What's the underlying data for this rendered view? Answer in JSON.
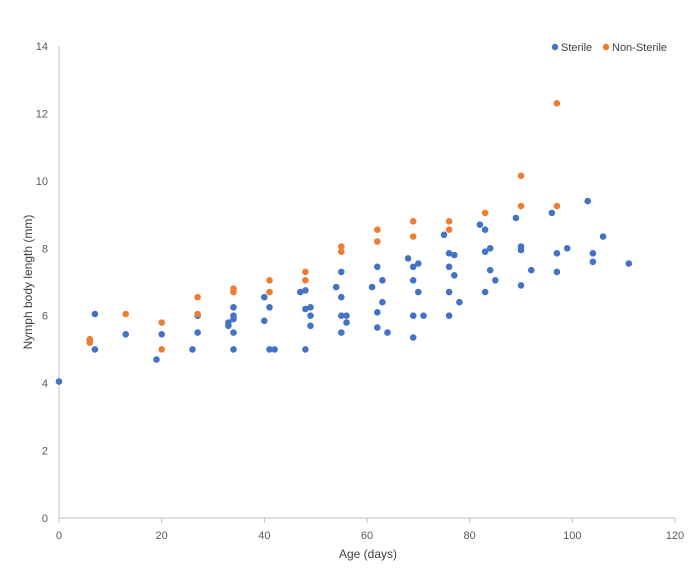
{
  "colors": {
    "sterile": "#4472C4",
    "non_sterile": "#ED7D31",
    "axis": "#BFBFBF",
    "text": "#595959"
  },
  "chart_data": {
    "type": "scatter",
    "title": "",
    "xlabel": "Age (days)",
    "ylabel": "Nymph body length (mm)",
    "xlim": [
      0,
      120
    ],
    "ylim": [
      0,
      14
    ],
    "x_ticks": [
      "0",
      "20",
      "40",
      "60",
      "80",
      "100",
      "120"
    ],
    "y_ticks": [
      "0",
      "2",
      "4",
      "6",
      "8",
      "10",
      "12",
      "14"
    ],
    "grid": false,
    "legend_position": "top-right",
    "series": [
      {
        "name": "Sterile",
        "color": "#4472C4",
        "points": [
          [
            0,
            4.05
          ],
          [
            6,
            5.25
          ],
          [
            7,
            6.05
          ],
          [
            7,
            5.0
          ],
          [
            13,
            5.45
          ],
          [
            19,
            4.7
          ],
          [
            20,
            5.45
          ],
          [
            26,
            5.0
          ],
          [
            27,
            6.0
          ],
          [
            27,
            5.5
          ],
          [
            33,
            5.7
          ],
          [
            33,
            5.8
          ],
          [
            34,
            6.25
          ],
          [
            34,
            6.0
          ],
          [
            34,
            5.9
          ],
          [
            34,
            5.5
          ],
          [
            34,
            5.0
          ],
          [
            40,
            6.55
          ],
          [
            40,
            5.85
          ],
          [
            41,
            6.25
          ],
          [
            41,
            5.0
          ],
          [
            42,
            5.0
          ],
          [
            47,
            6.7
          ],
          [
            48,
            6.75
          ],
          [
            48,
            6.2
          ],
          [
            48,
            5.0
          ],
          [
            49,
            6.25
          ],
          [
            49,
            6.0
          ],
          [
            49,
            5.7
          ],
          [
            54,
            6.85
          ],
          [
            55,
            7.3
          ],
          [
            55,
            6.55
          ],
          [
            55,
            6.0
          ],
          [
            55,
            5.5
          ],
          [
            56,
            6.0
          ],
          [
            56,
            5.8
          ],
          [
            61,
            6.85
          ],
          [
            62,
            7.45
          ],
          [
            62,
            6.1
          ],
          [
            62,
            5.65
          ],
          [
            63,
            7.05
          ],
          [
            63,
            6.4
          ],
          [
            64,
            5.5
          ],
          [
            68,
            7.7
          ],
          [
            69,
            7.45
          ],
          [
            69,
            7.05
          ],
          [
            69,
            6.0
          ],
          [
            69,
            5.35
          ],
          [
            70,
            7.55
          ],
          [
            70,
            6.7
          ],
          [
            71,
            6.0
          ],
          [
            75,
            8.4
          ],
          [
            76,
            7.85
          ],
          [
            76,
            7.45
          ],
          [
            76,
            6.7
          ],
          [
            76,
            6.0
          ],
          [
            77,
            7.8
          ],
          [
            77,
            7.2
          ],
          [
            78,
            6.4
          ],
          [
            82,
            8.7
          ],
          [
            83,
            8.55
          ],
          [
            83,
            7.9
          ],
          [
            83,
            6.7
          ],
          [
            84,
            8.0
          ],
          [
            84,
            7.35
          ],
          [
            85,
            7.05
          ],
          [
            89,
            8.9
          ],
          [
            90,
            8.05
          ],
          [
            90,
            7.95
          ],
          [
            90,
            6.9
          ],
          [
            92,
            7.35
          ],
          [
            96,
            9.05
          ],
          [
            97,
            7.85
          ],
          [
            97,
            7.3
          ],
          [
            99,
            8.0
          ],
          [
            103,
            9.4
          ],
          [
            104,
            7.85
          ],
          [
            104,
            7.6
          ],
          [
            106,
            8.35
          ],
          [
            111,
            7.55
          ]
        ]
      },
      {
        "name": "Non-Sterile",
        "color": "#ED7D31",
        "points": [
          [
            6,
            5.3
          ],
          [
            6,
            5.2
          ],
          [
            13,
            6.05
          ],
          [
            20,
            5.8
          ],
          [
            20,
            5.0
          ],
          [
            27,
            6.55
          ],
          [
            27,
            6.05
          ],
          [
            34,
            6.8
          ],
          [
            34,
            6.7
          ],
          [
            41,
            7.05
          ],
          [
            41,
            6.7
          ],
          [
            48,
            7.3
          ],
          [
            48,
            7.05
          ],
          [
            55,
            8.05
          ],
          [
            55,
            7.9
          ],
          [
            62,
            8.55
          ],
          [
            62,
            8.2
          ],
          [
            69,
            8.8
          ],
          [
            69,
            8.35
          ],
          [
            76,
            8.8
          ],
          [
            76,
            8.55
          ],
          [
            83,
            9.05
          ],
          [
            90,
            10.15
          ],
          [
            90,
            9.25
          ],
          [
            97,
            12.3
          ],
          [
            97,
            9.25
          ]
        ]
      }
    ]
  }
}
